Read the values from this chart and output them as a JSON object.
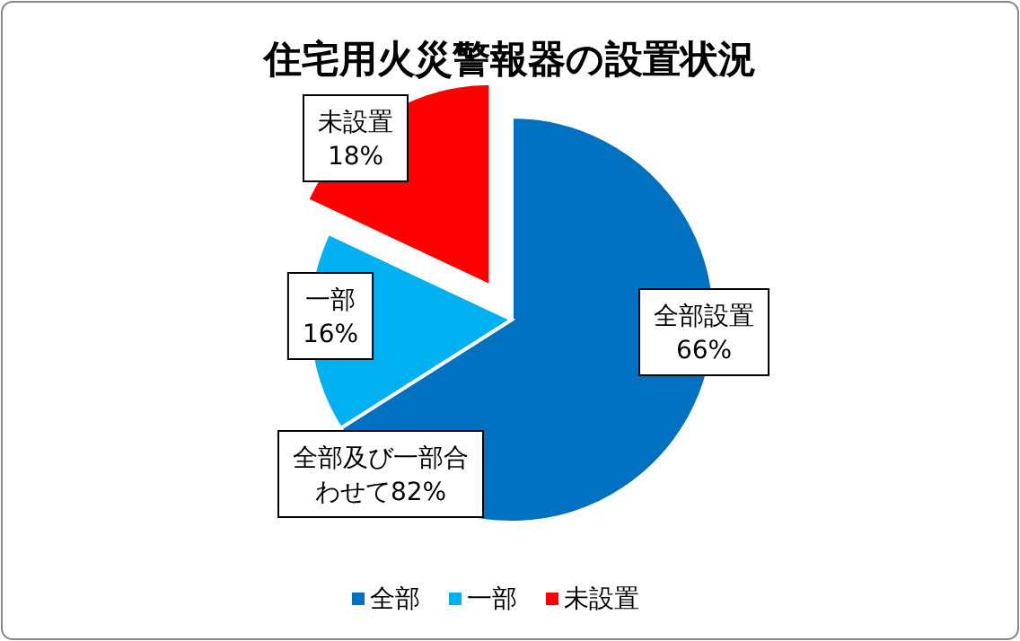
{
  "chart_data": {
    "type": "pie",
    "title": "住宅用火災警報器の設置状況",
    "categories": [
      "全部",
      "一部",
      "未設置"
    ],
    "values": [
      66,
      16,
      18
    ],
    "colors": [
      "#0070c0",
      "#00b0f0",
      "#ff0000"
    ],
    "value_labels": [
      "全部設置 66%",
      "一部 16%",
      "未設置 18%"
    ],
    "annotations": [
      "全部及び一部合わせて82%"
    ],
    "legend": "bottom"
  }
}
